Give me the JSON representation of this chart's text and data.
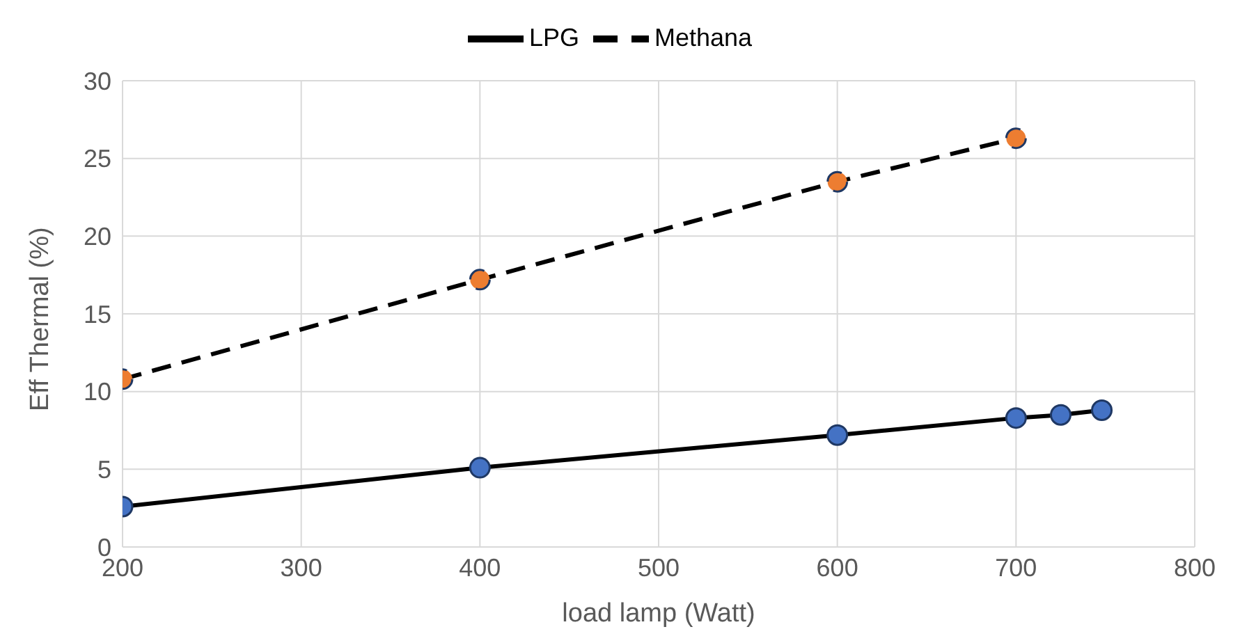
{
  "chart_data": {
    "type": "line",
    "xlabel": "load lamp (Watt)",
    "ylabel": "Eff Thermal (%)",
    "xlim": [
      200,
      800
    ],
    "xticks": [
      200,
      300,
      400,
      500,
      600,
      700,
      800
    ],
    "ylim": [
      0,
      30
    ],
    "yticks": [
      0,
      5,
      10,
      15,
      20,
      25,
      30
    ],
    "grid": true,
    "legend": "top",
    "marker": "circle",
    "series": [
      {
        "name": "LPG",
        "color": "#4472c4",
        "line_style": "solid",
        "x": [
          200,
          400,
          600,
          700,
          725,
          748
        ],
        "values": [
          2.6,
          5.1,
          7.2,
          8.3,
          8.5,
          8.8
        ]
      },
      {
        "name": "Methana",
        "color": "#ed7d31",
        "line_style": "dashed",
        "x": [
          200,
          400,
          600,
          700
        ],
        "values": [
          10.8,
          17.2,
          23.5,
          26.3
        ]
      }
    ]
  }
}
